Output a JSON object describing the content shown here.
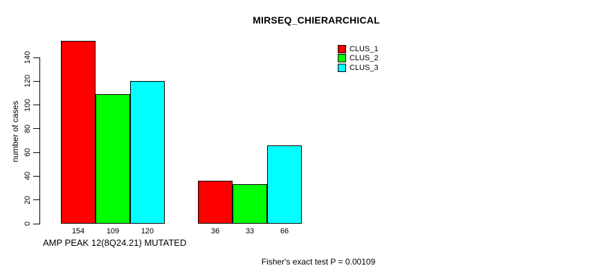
{
  "title": "MIRSEQ_CHIERARCHICAL",
  "axis": {
    "ylabel": "number of cases",
    "xlabel": "AMP PEAK 12(8Q24.21) MUTATED",
    "yticks": [
      0,
      20,
      40,
      60,
      80,
      100,
      120,
      140
    ]
  },
  "footer": "Fisher's exact test P = 0.00109",
  "colors": {
    "clus_1": "#FF0000",
    "clus_2": "#00FF00",
    "clus_3": "#00FFFF",
    "axis": "#000000",
    "background": "#FFFFFF"
  },
  "chart_data": {
    "type": "bar",
    "title": "MIRSEQ_CHIERARCHICAL",
    "xlabel": "AMP PEAK 12(8Q24.21) MUTATED",
    "ylabel": "number of cases",
    "ytick_range": [
      0,
      140
    ],
    "ytick_step": 20,
    "grid": false,
    "legend_position": "top-right",
    "categories": [
      "",
      ""
    ],
    "series": [
      {
        "name": "CLUS_1",
        "color": "#FF0000",
        "values": [
          154,
          36
        ]
      },
      {
        "name": "CLUS_2",
        "color": "#00FF00",
        "values": [
          109,
          33
        ]
      },
      {
        "name": "CLUS_3",
        "color": "#00FFFF",
        "values": [
          120,
          66
        ]
      }
    ],
    "bar_value_labels": [
      [
        154,
        109,
        120
      ],
      [
        36,
        33,
        66
      ]
    ],
    "annotation": "Fisher's exact test P = 0.00109"
  }
}
